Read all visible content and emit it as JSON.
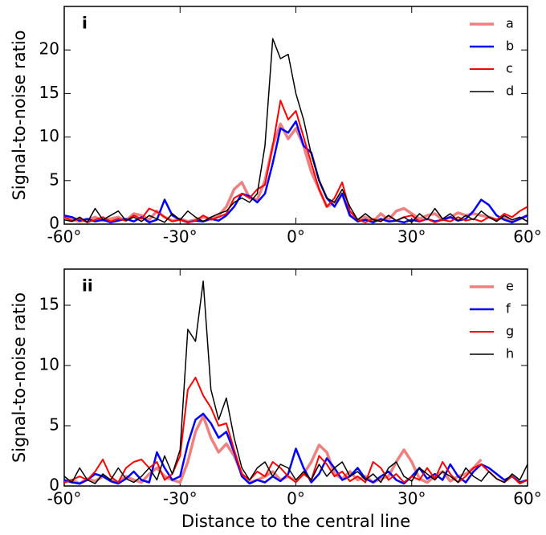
{
  "chart_data": [
    {
      "type": "line",
      "panel_label": "i",
      "ylabel": "Signal-to-noise ratio",
      "legend": "upper right",
      "xlim": [
        -60,
        60
      ],
      "ylim": [
        0,
        25
      ],
      "xticks": [
        {
          "value": -60,
          "label": "-60°"
        },
        {
          "value": -30,
          "label": "-30°"
        },
        {
          "value": 0,
          "label": "0°"
        },
        {
          "value": 30,
          "label": "30°"
        },
        {
          "value": 60,
          "label": "60°"
        }
      ],
      "yticks": [
        0,
        5,
        10,
        15,
        20
      ],
      "x": [
        -60,
        -58,
        -56,
        -54,
        -52,
        -50,
        -48,
        -46,
        -44,
        -42,
        -40,
        -38,
        -36,
        -34,
        -32,
        -30,
        -28,
        -26,
        -24,
        -22,
        -20,
        -18,
        -16,
        -14,
        -12,
        -10,
        -8,
        -6,
        -4,
        -2,
        0,
        2,
        4,
        6,
        8,
        10,
        12,
        14,
        16,
        18,
        20,
        22,
        24,
        26,
        28,
        30,
        32,
        34,
        36,
        38,
        40,
        42,
        44,
        46,
        48,
        50,
        52,
        54,
        56,
        58,
        60
      ],
      "series": [
        {
          "name": "a",
          "color": "#f08080",
          "width": 3.5,
          "values": [
            0.8,
            0.5,
            0.3,
            0.5,
            0.8,
            0.4,
            0.6,
            0.8,
            0.4,
            1.2,
            1.0,
            0.5,
            1.5,
            0.8,
            0.4,
            0.6,
            0.3,
            0.5,
            0.8,
            0.6,
            1.0,
            2.0,
            4.0,
            4.8,
            3.0,
            2.8,
            5.0,
            9.0,
            11.5,
            9.8,
            11.0,
            9.0,
            6.0,
            4.0,
            2.0,
            2.5,
            3.5,
            1.0,
            0.5,
            0.8,
            0.3,
            1.2,
            0.5,
            1.5,
            1.8,
            1.2,
            0.6,
            1.0,
            1.2,
            0.5,
            0.8,
            1.3,
            1.0,
            1.2,
            1.0,
            0.8,
            0.5,
            0.8,
            0.4,
            0.6,
            1.0
          ]
        },
        {
          "name": "b",
          "color": "#0000ff",
          "width": 2.5,
          "values": [
            1.0,
            0.8,
            0.4,
            0.6,
            0.3,
            0.5,
            0.2,
            0.4,
            0.6,
            0.3,
            0.8,
            0.2,
            0.5,
            2.8,
            1.0,
            0.5,
            0.2,
            0.4,
            0.3,
            0.6,
            0.4,
            1.0,
            2.0,
            3.5,
            3.2,
            2.5,
            3.5,
            7.0,
            11.0,
            10.5,
            11.8,
            9.0,
            8.2,
            5.0,
            3.0,
            2.0,
            3.5,
            1.0,
            0.3,
            0.5,
            0.2,
            0.6,
            0.3,
            0.4,
            0.2,
            0.5,
            0.3,
            0.6,
            0.3,
            0.5,
            0.8,
            0.4,
            0.6,
            1.5,
            2.8,
            2.2,
            1.0,
            0.5,
            0.2,
            0.6,
            1.0
          ]
        },
        {
          "name": "c",
          "color": "#ff0000",
          "width": 2,
          "values": [
            0.8,
            0.4,
            0.6,
            0.2,
            0.5,
            0.8,
            0.3,
            0.6,
            0.4,
            1.0,
            0.6,
            1.8,
            1.4,
            0.8,
            0.3,
            0.5,
            0.2,
            0.4,
            1.0,
            0.5,
            0.8,
            1.2,
            3.0,
            3.5,
            3.0,
            4.0,
            4.5,
            9.0,
            14.2,
            12.0,
            13.0,
            10.0,
            7.0,
            4.0,
            2.0,
            3.0,
            4.8,
            1.5,
            0.5,
            0.2,
            0.6,
            0.3,
            1.0,
            0.4,
            0.8,
            1.0,
            0.3,
            0.6,
            0.2,
            0.5,
            0.3,
            0.8,
            0.4,
            0.6,
            0.3,
            0.8,
            0.5,
            1.2,
            0.8,
            1.5,
            2.0
          ]
        },
        {
          "name": "d",
          "color": "#000000",
          "width": 1.5,
          "values": [
            0.5,
            0.3,
            0.8,
            0.2,
            1.8,
            0.5,
            1.0,
            1.5,
            0.4,
            0.8,
            0.3,
            1.0,
            0.6,
            0.2,
            1.2,
            0.5,
            1.5,
            0.8,
            0.3,
            0.8,
            1.2,
            1.5,
            2.5,
            3.0,
            2.5,
            3.5,
            9.0,
            21.3,
            19.0,
            19.5,
            15.0,
            12.0,
            8.0,
            5.0,
            3.0,
            2.5,
            4.0,
            2.0,
            0.5,
            1.2,
            0.5,
            0.3,
            1.0,
            0.4,
            0.8,
            0.2,
            1.2,
            0.5,
            1.8,
            0.6,
            1.2,
            0.4,
            1.0,
            0.5,
            1.5,
            0.8,
            0.3,
            1.0,
            0.5,
            0.8,
            0.3
          ]
        }
      ]
    },
    {
      "type": "line",
      "panel_label": "ii",
      "ylabel": "Signal-to-noise ratio",
      "xlabel": "Distance to the central line",
      "legend": "upper right",
      "xlim": [
        -60,
        60
      ],
      "ylim": [
        0,
        18
      ],
      "xticks": [
        {
          "value": -60,
          "label": "-60°"
        },
        {
          "value": -30,
          "label": "-30°"
        },
        {
          "value": 0,
          "label": "0°"
        },
        {
          "value": 30,
          "label": "30°"
        },
        {
          "value": 60,
          "label": "60°"
        }
      ],
      "yticks": [
        0,
        5,
        10,
        15
      ],
      "x": [
        -60,
        -58,
        -56,
        -54,
        -52,
        -50,
        -48,
        -46,
        -44,
        -42,
        -40,
        -38,
        -36,
        -34,
        -32,
        -30,
        -28,
        -26,
        -24,
        -22,
        -20,
        -18,
        -16,
        -14,
        -12,
        -10,
        -8,
        -6,
        -4,
        -2,
        0,
        2,
        4,
        6,
        8,
        10,
        12,
        14,
        16,
        18,
        20,
        22,
        24,
        26,
        28,
        30,
        32,
        34,
        36,
        38,
        40,
        42,
        44,
        46,
        48,
        50,
        52,
        54,
        56,
        58,
        60
      ],
      "series": [
        {
          "name": "e",
          "color": "#f08080",
          "width": 3.5,
          "values": [
            0.3,
            0.5,
            0.2,
            0.6,
            0.4,
            0.8,
            0.5,
            0.3,
            0.8,
            0.5,
            0.3,
            1.0,
            1.5,
            0.8,
            0.5,
            0.3,
            2.0,
            4.5,
            5.8,
            4.0,
            2.8,
            3.5,
            2.5,
            1.0,
            0.3,
            0.5,
            0.8,
            1.2,
            0.5,
            0.8,
            0.4,
            1.0,
            2.0,
            3.4,
            2.8,
            1.0,
            0.6,
            1.2,
            0.5,
            0.8,
            0.3,
            0.6,
            0.8,
            2.0,
            3.0,
            2.0,
            0.6,
            0.3,
            0.8,
            1.2,
            0.4,
            0.8,
            1.0,
            1.5,
            2.2,
            null,
            null,
            null,
            null,
            null,
            null
          ]
        },
        {
          "name": "f",
          "color": "#0000ff",
          "width": 2.5,
          "values": [
            0.5,
            0.3,
            0.2,
            0.5,
            1.0,
            0.8,
            0.4,
            0.2,
            0.6,
            1.2,
            0.5,
            0.3,
            2.8,
            1.5,
            0.5,
            0.8,
            3.5,
            5.5,
            6.0,
            5.2,
            4.0,
            4.5,
            2.8,
            0.8,
            0.2,
            0.5,
            0.3,
            0.8,
            0.4,
            1.0,
            3.1,
            1.5,
            0.3,
            1.0,
            2.3,
            1.5,
            0.5,
            0.8,
            1.5,
            0.6,
            0.3,
            0.8,
            1.2,
            0.5,
            0.2,
            0.8,
            1.5,
            0.6,
            1.0,
            0.5,
            1.8,
            0.8,
            0.3,
            1.2,
            1.8,
            1.5,
            1.0,
            0.5,
            0.8,
            0.3,
            0.5
          ]
        },
        {
          "name": "g",
          "color": "#ff0000",
          "width": 2,
          "values": [
            0.3,
            0.5,
            0.8,
            0.5,
            1.2,
            2.2,
            0.8,
            0.3,
            1.5,
            2.0,
            2.2,
            1.5,
            2.0,
            0.5,
            1.0,
            2.5,
            8.0,
            9.0,
            7.5,
            6.5,
            5.0,
            5.2,
            3.0,
            1.0,
            0.5,
            1.2,
            0.8,
            2.0,
            1.5,
            0.8,
            0.3,
            1.0,
            0.5,
            2.5,
            1.8,
            0.8,
            1.2,
            0.4,
            0.8,
            0.3,
            2.0,
            1.5,
            0.5,
            1.0,
            0.3,
            0.8,
            0.5,
            1.5,
            0.6,
            2.0,
            1.0,
            0.3,
            0.8,
            1.5,
            1.8,
            1.2,
            0.6,
            0.3,
            0.8,
            0.2,
            0.5
          ]
        },
        {
          "name": "h",
          "color": "#000000",
          "width": 1.5,
          "values": [
            0.8,
            0.3,
            1.5,
            0.5,
            0.2,
            1.0,
            0.5,
            1.5,
            0.6,
            0.3,
            0.8,
            1.5,
            0.5,
            2.5,
            1.0,
            3.0,
            13.0,
            12.0,
            17.0,
            8.0,
            5.5,
            7.3,
            4.0,
            1.5,
            0.5,
            1.5,
            2.0,
            0.8,
            1.8,
            1.5,
            0.5,
            1.2,
            0.5,
            1.8,
            0.8,
            1.5,
            2.0,
            0.8,
            1.2,
            0.5,
            1.0,
            0.3,
            1.5,
            2.0,
            0.8,
            0.4,
            1.5,
            1.0,
            0.5,
            1.2,
            0.8,
            0.3,
            1.5,
            0.8,
            0.4,
            1.2,
            0.6,
            0.3,
            1.0,
            0.5,
            1.8
          ]
        }
      ]
    }
  ]
}
